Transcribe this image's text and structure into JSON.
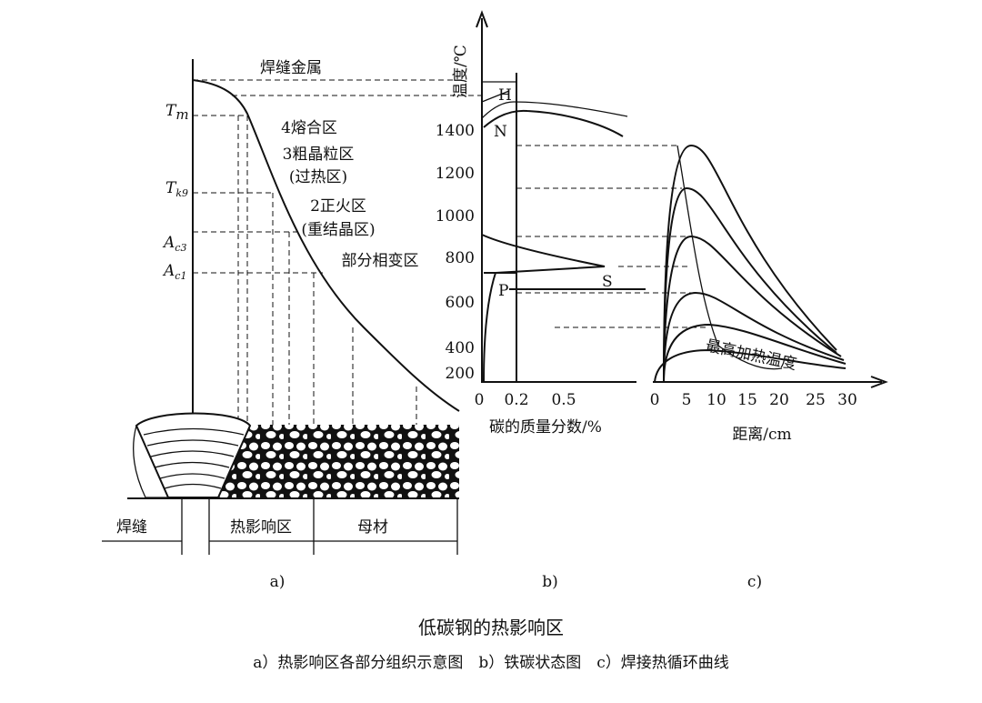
{
  "panel_a": {
    "label": "a)",
    "zones": [
      "焊缝金属",
      "4熔合区",
      "3粗晶粒区",
      "(过热区)",
      "2正火区",
      "(重结晶区)",
      "部分相变区"
    ],
    "temperatures": [
      {
        "symbol": "T",
        "sub": "m"
      },
      {
        "symbol": "T",
        "sub": "k9"
      },
      {
        "symbol": "A",
        "sub": "c3"
      },
      {
        "symbol": "A",
        "sub": "c1"
      }
    ],
    "bottom_labels": [
      "焊缝",
      "热影响区",
      "母材"
    ]
  },
  "panel_b": {
    "label": "b)",
    "y_axis_label": "温度/℃",
    "yticks": [
      1400,
      1200,
      1000,
      800,
      600,
      400,
      200
    ],
    "xticks": [
      0,
      0.2,
      0.5
    ],
    "x_axis_label": "碳的质量分数/%",
    "points": [
      "H",
      "N",
      "P",
      "S"
    ]
  },
  "panel_c": {
    "label": "c)",
    "xticks": [
      0,
      5,
      10,
      15,
      20,
      25,
      30
    ],
    "x_axis_label": "距离/cm",
    "curve_label": "最高加热温度"
  },
  "caption": {
    "title": "低碳钢的热影响区",
    "subtitle": "a）热影响区各部分组织示意图　b）铁碳状态图　c）焊接热循环曲线"
  }
}
